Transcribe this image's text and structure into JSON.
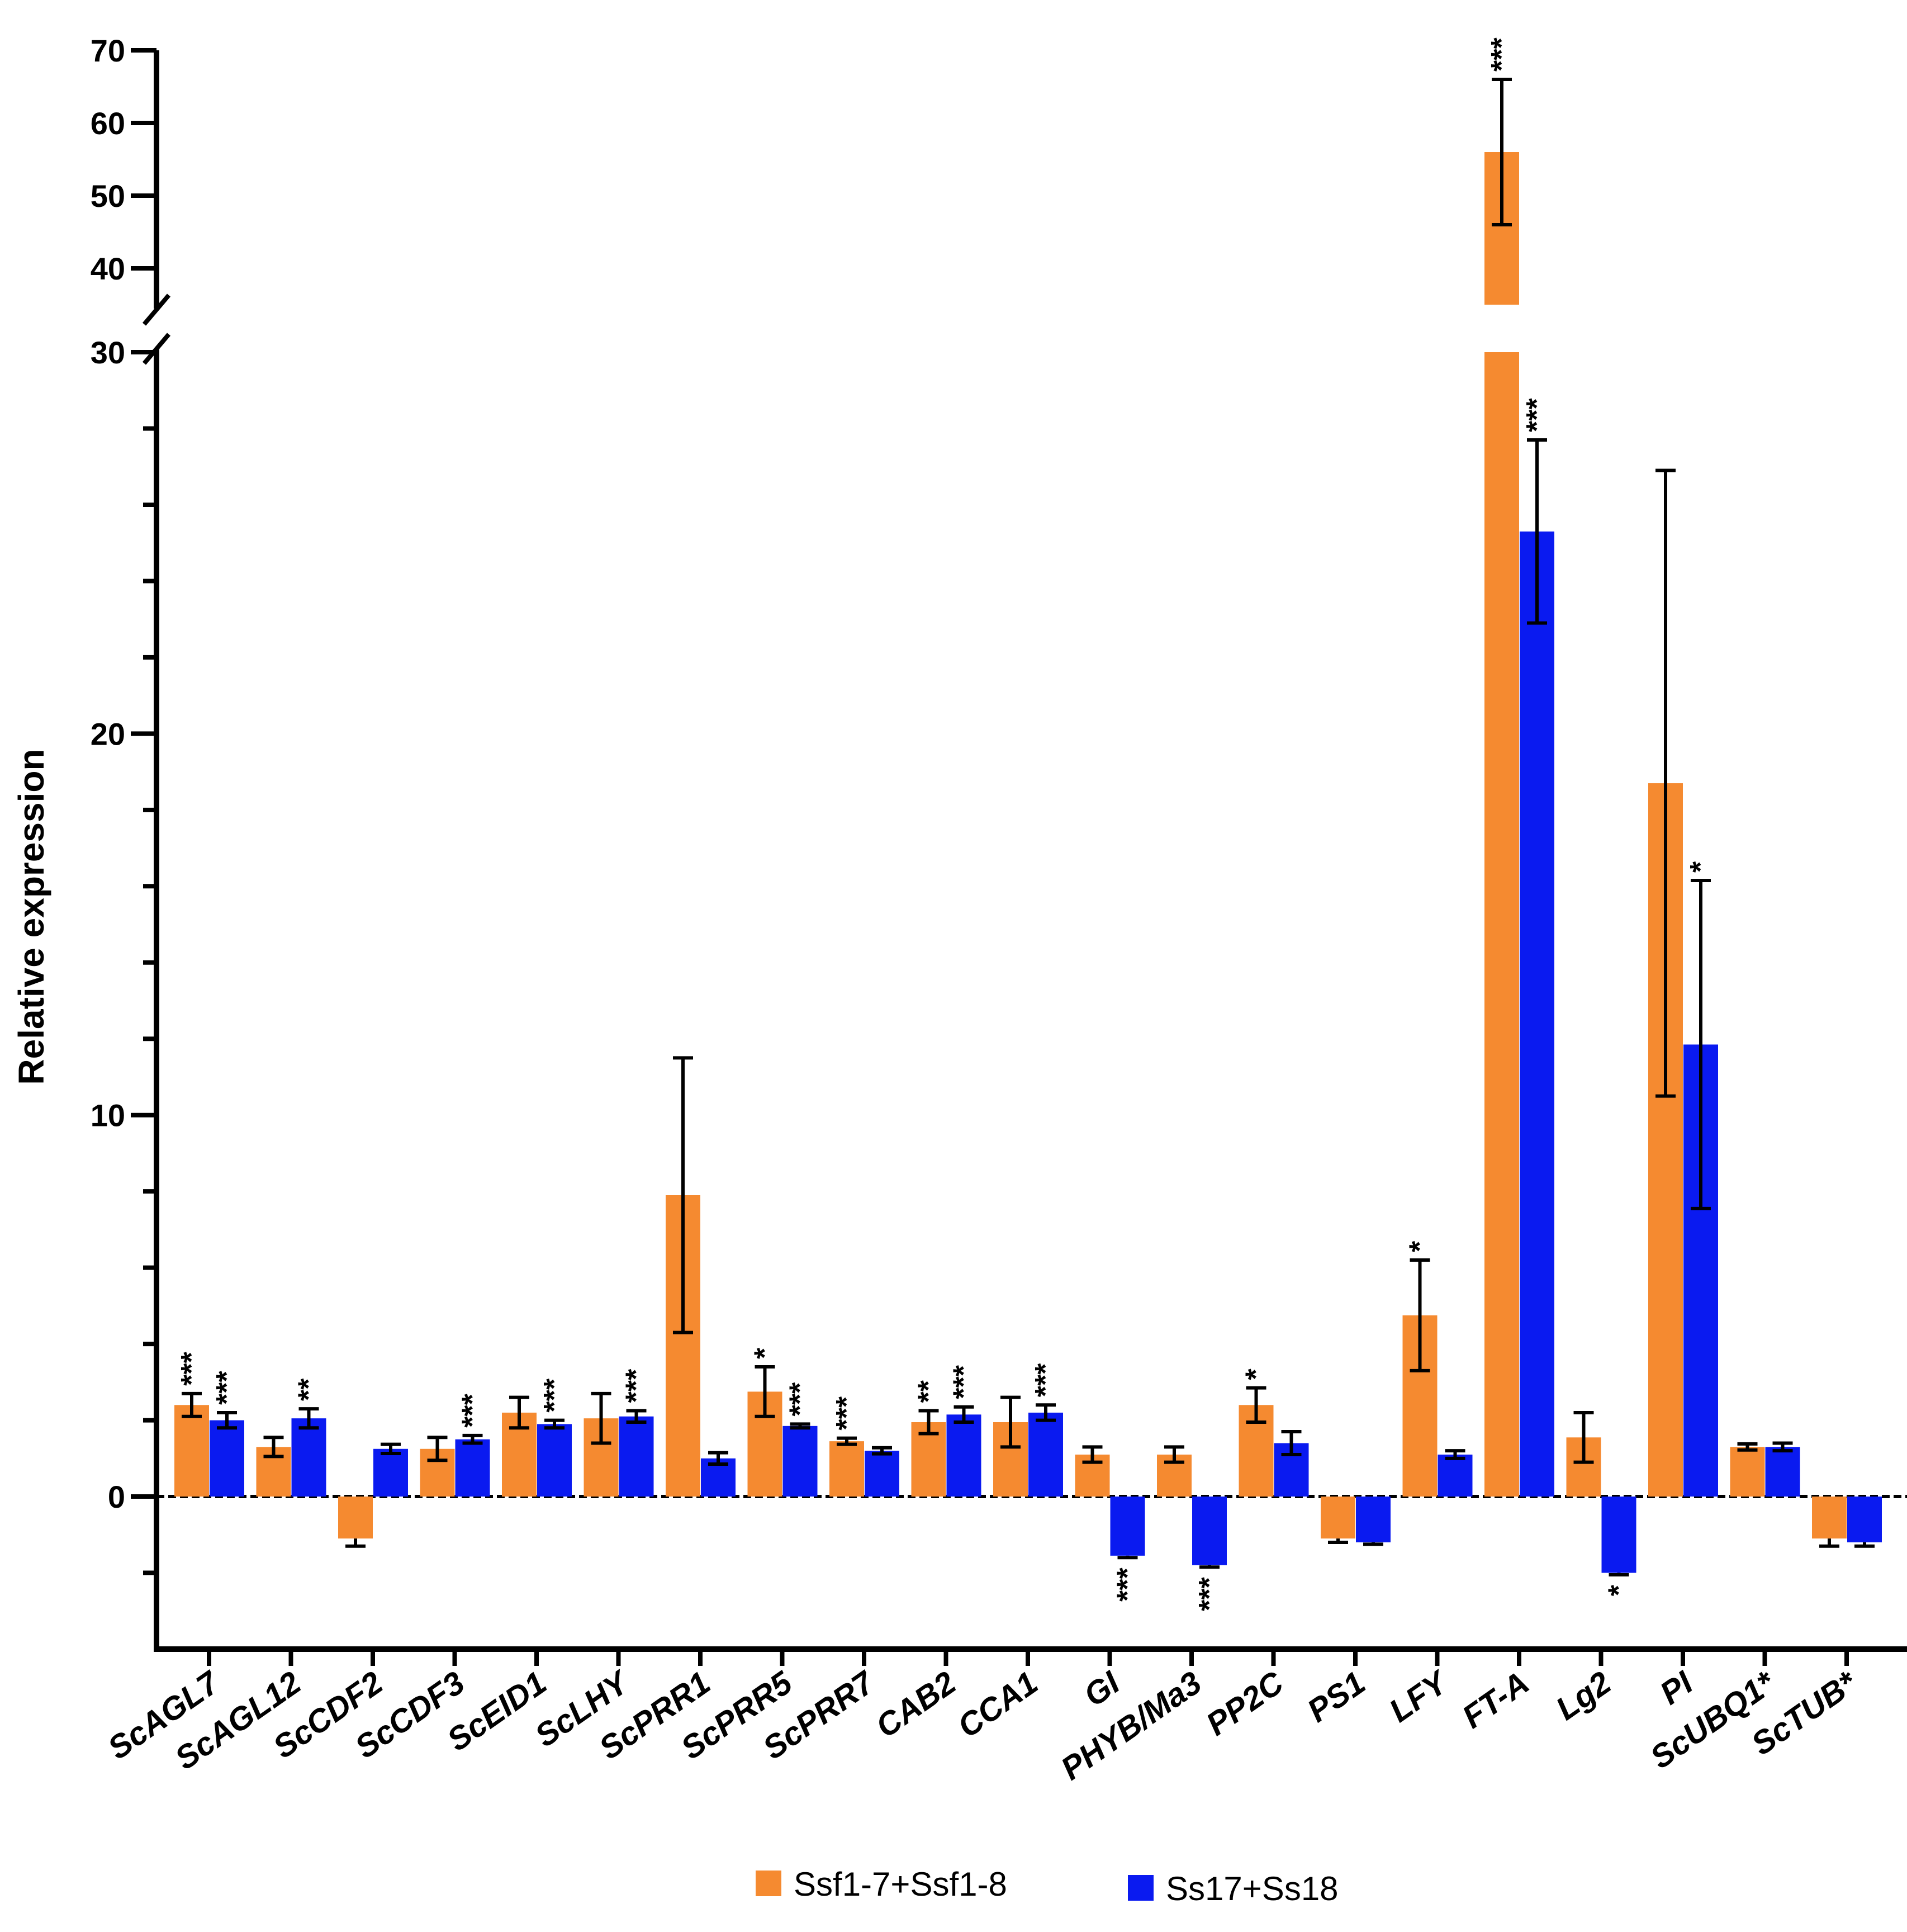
{
  "chart_data": {
    "type": "bar",
    "title": "",
    "xlabel": "",
    "ylabel": "Relative expression",
    "ylim_lower": [
      -4,
      30
    ],
    "ylim_upper": [
      35,
      70
    ],
    "axis_break": [
      30,
      35
    ],
    "yticks_lower": [
      0,
      10,
      20,
      30
    ],
    "yticks_upper": [
      40,
      50,
      60,
      70
    ],
    "grid": false,
    "legend_position": "bottom",
    "colors": {
      "s1": "#F58A30",
      "s2": "#0A1AF0",
      "axis": "#000000"
    },
    "categories": [
      "ScAGL7",
      "ScAGL12",
      "ScCDF2",
      "ScCDF3",
      "ScEID1",
      "ScLHY",
      "ScPRR1",
      "ScPRR5",
      "ScPRR7",
      "CAB2",
      "CCA1",
      "GI",
      "PHYB/Ma3",
      "PP2C",
      "PS1",
      "LFY",
      "FT-A",
      "Lg2",
      "PI",
      "ScUBQ1*",
      "ScTUB*"
    ],
    "series": [
      {
        "name": "Ssf1-7+Ssf1-8",
        "values": [
          2.4,
          1.3,
          -1.1,
          1.25,
          2.2,
          2.05,
          7.9,
          2.75,
          1.45,
          1.95,
          1.95,
          1.1,
          1.1,
          2.4,
          -1.1,
          4.75,
          56,
          1.55,
          18.7,
          1.3,
          -1.1
        ],
        "errors": [
          0.3,
          0.25,
          0.2,
          0.3,
          0.4,
          0.65,
          3.6,
          0.65,
          0.08,
          0.3,
          0.65,
          0.2,
          0.2,
          0.45,
          0.1,
          1.45,
          10,
          0.65,
          8.2,
          0.08,
          0.2
        ],
        "significance": [
          "***",
          "",
          "",
          "",
          "",
          "",
          "",
          "*",
          "***",
          "**",
          "",
          "",
          "",
          "*",
          "",
          "*",
          "***",
          "",
          "",
          "",
          ""
        ]
      },
      {
        "name": "Ss17+Ss18",
        "values": [
          2.0,
          2.05,
          1.25,
          1.5,
          1.9,
          2.1,
          1.0,
          1.85,
          1.2,
          2.15,
          2.2,
          -1.55,
          -1.8,
          1.4,
          -1.2,
          1.1,
          25.3,
          -2.0,
          11.85,
          1.3,
          -1.2
        ],
        "errors": [
          0.2,
          0.25,
          0.12,
          0.1,
          0.1,
          0.15,
          0.15,
          0.05,
          0.08,
          0.2,
          0.2,
          0.05,
          0.05,
          0.3,
          0.05,
          0.1,
          2.4,
          0.05,
          4.3,
          0.1,
          0.1
        ],
        "significance": [
          "***",
          "**",
          "",
          "***",
          "***",
          "***",
          "",
          "***",
          "",
          "***",
          "***",
          "***",
          "***",
          "",
          "",
          "",
          "***",
          "*",
          "*",
          "",
          ""
        ]
      }
    ]
  }
}
